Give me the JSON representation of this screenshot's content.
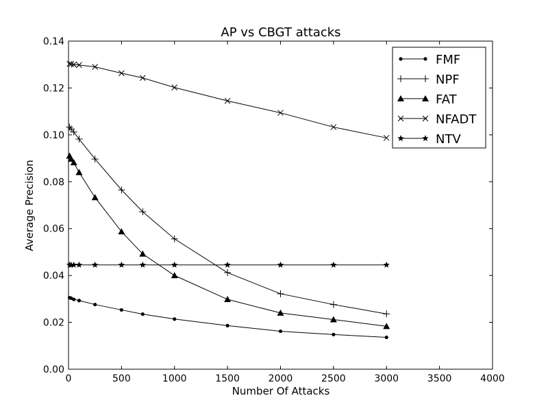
{
  "chart_data": {
    "type": "line",
    "title": "AP vs CBGT attacks",
    "xlabel": "Number Of Attacks",
    "ylabel": "Average Precision",
    "xlim": [
      0,
      4000
    ],
    "ylim": [
      0,
      0.14
    ],
    "xticks": [
      0,
      500,
      1000,
      1500,
      2000,
      2500,
      3000,
      3500,
      4000
    ],
    "xtick_labels": [
      "0",
      "500",
      "1000",
      "1500",
      "2000",
      "2500",
      "3000",
      "3500",
      "4000"
    ],
    "yticks": [
      0,
      0.02,
      0.04,
      0.06,
      0.08,
      0.1,
      0.12,
      0.14
    ],
    "ytick_labels": [
      "0.00",
      "0.02",
      "0.04",
      "0.06",
      "0.08",
      "0.10",
      "0.12",
      "0.14"
    ],
    "grid": false,
    "legend_position": "top-right",
    "x": [
      10,
      25,
      50,
      100,
      250,
      500,
      700,
      1000,
      1500,
      2000,
      2500,
      3000
    ],
    "series": [
      {
        "name": "FMF",
        "marker": "dot",
        "values": [
          0.0305,
          0.0303,
          0.0298,
          0.0293,
          0.0276,
          0.0253,
          0.0235,
          0.0214,
          0.0186,
          0.0162,
          0.0148,
          0.0136
        ]
      },
      {
        "name": "NPF",
        "marker": "plus",
        "values": [
          0.1033,
          0.1025,
          0.1012,
          0.0982,
          0.0897,
          0.0765,
          0.0672,
          0.0556,
          0.0412,
          0.0322,
          0.0276,
          0.0236
        ]
      },
      {
        "name": "FAT",
        "marker": "triangle",
        "values": [
          0.091,
          0.0897,
          0.0882,
          0.084,
          0.0733,
          0.0587,
          0.0492,
          0.04,
          0.0298,
          0.024,
          0.0212,
          0.0183
        ]
      },
      {
        "name": "NFADT",
        "marker": "x",
        "values": [
          0.1303,
          0.1302,
          0.13,
          0.1298,
          0.129,
          0.1263,
          0.1243,
          0.1202,
          0.1145,
          0.1094,
          0.1033,
          0.0987
        ]
      },
      {
        "name": "NTV",
        "marker": "star",
        "values": [
          0.0445,
          0.0445,
          0.0445,
          0.0445,
          0.0445,
          0.0445,
          0.0445,
          0.0445,
          0.0445,
          0.0445,
          0.0445,
          0.0445
        ]
      }
    ],
    "colors": {
      "line": "#000000",
      "background": "#ffffff"
    }
  }
}
